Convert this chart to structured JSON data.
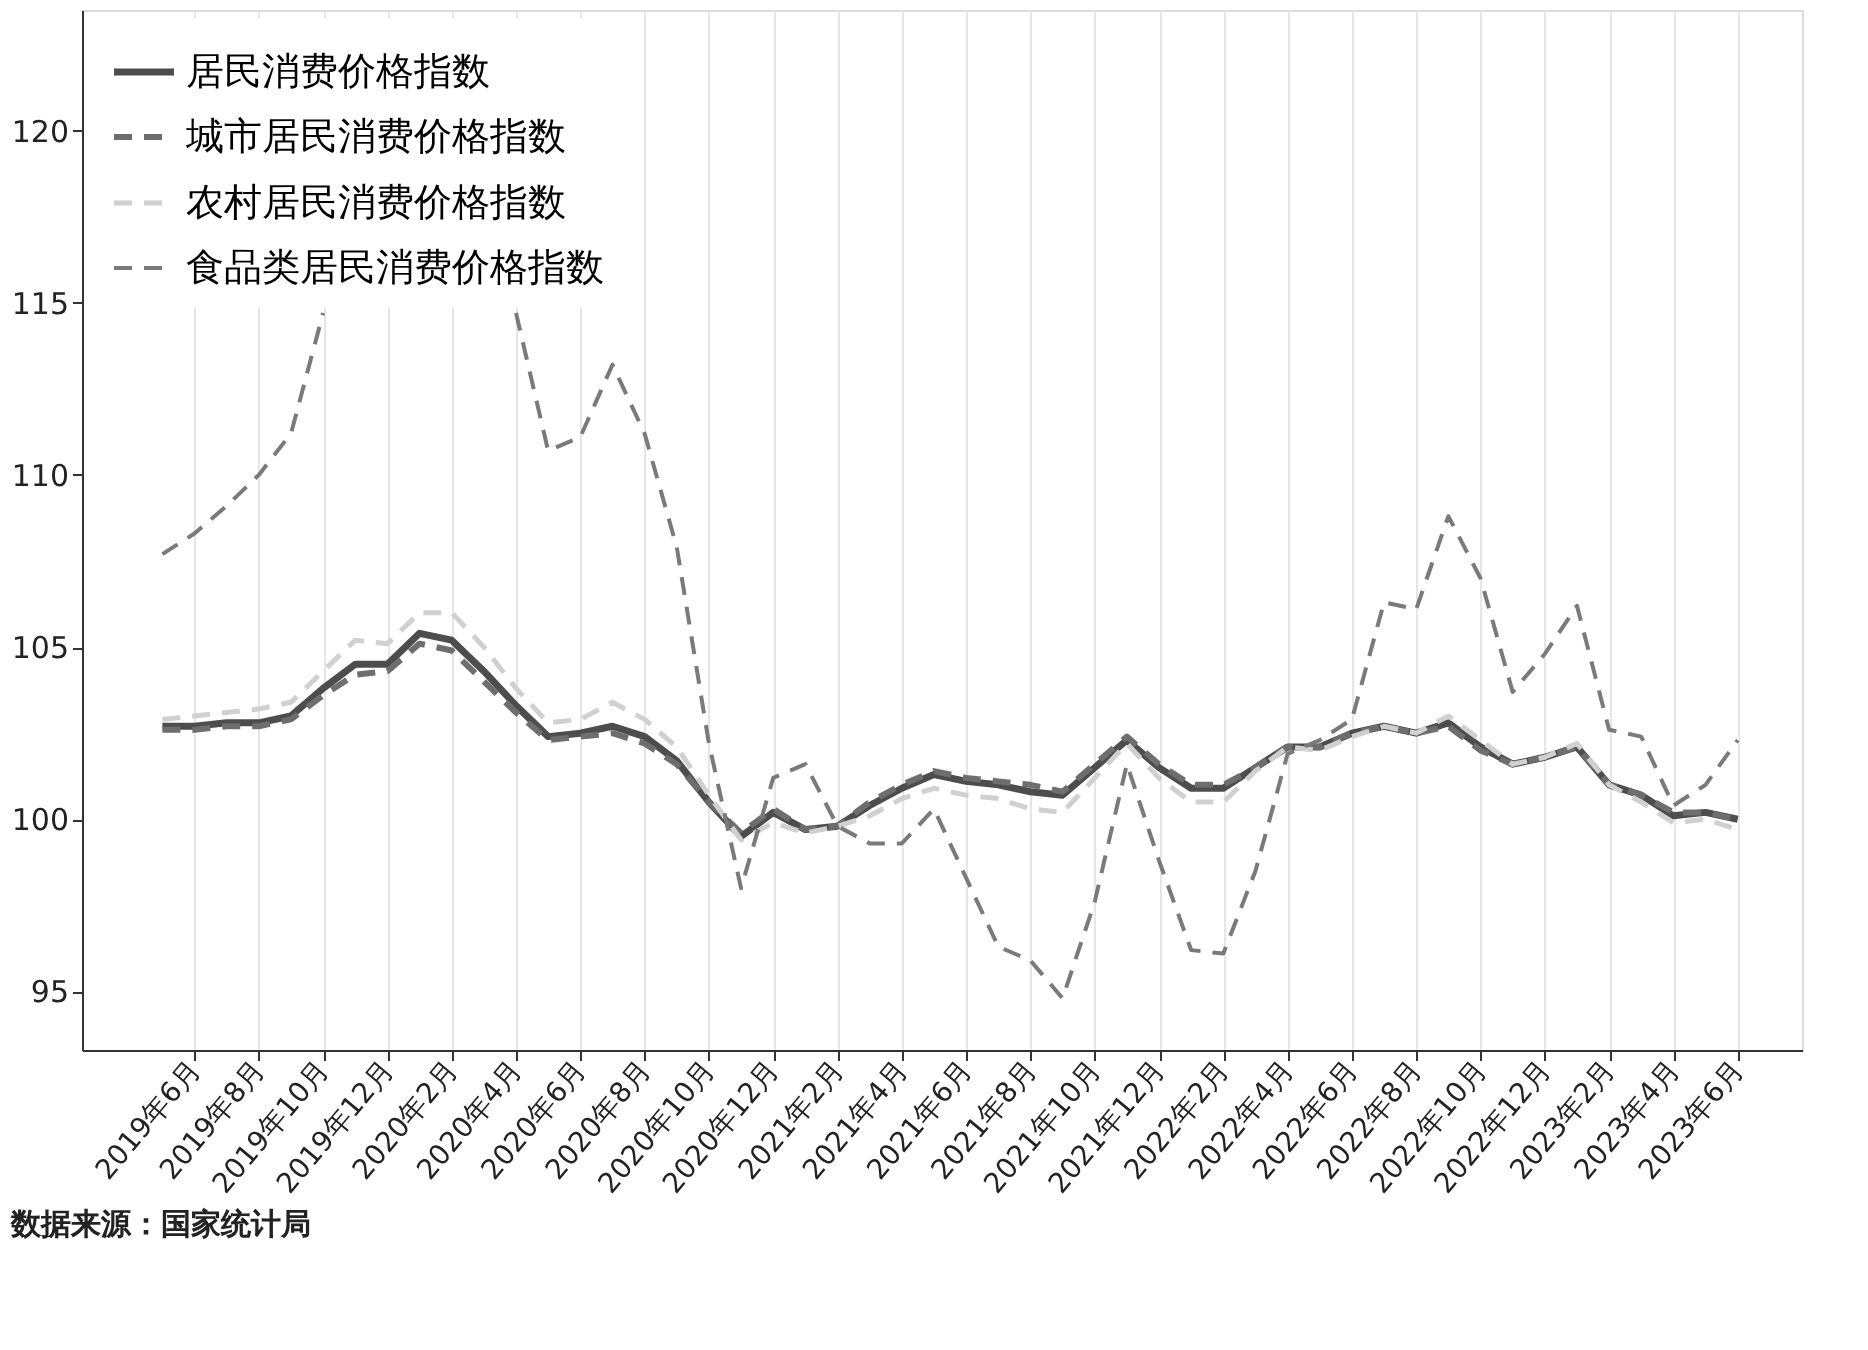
{
  "chart_data": {
    "type": "line",
    "categories": [
      null,
      "2019年6月",
      null,
      "2019年8月",
      null,
      "2019年10月",
      null,
      "2019年12月",
      null,
      "2020年2月",
      null,
      "2020年4月",
      null,
      "2020年6月",
      null,
      "2020年8月",
      null,
      "2020年10月",
      null,
      "2020年12月",
      null,
      "2021年2月",
      null,
      "2021年4月",
      null,
      "2021年6月",
      null,
      "2021年8月",
      null,
      "2021年10月",
      null,
      "2021年12月",
      null,
      "2022年2月",
      null,
      "2022年4月",
      null,
      "2022年6月",
      null,
      "2022年8月",
      null,
      "2022年10月",
      null,
      "2022年12月",
      null,
      "2023年2月",
      null,
      "2023年4月",
      null,
      "2023年6月"
    ],
    "series": [
      {
        "name": "居民消费价格指数",
        "color": "#4d4d4d",
        "line_style": "solid",
        "values": [
          102.7,
          102.7,
          102.8,
          102.8,
          103.0,
          103.8,
          104.5,
          104.5,
          105.4,
          105.2,
          104.3,
          103.3,
          102.4,
          102.5,
          102.7,
          102.4,
          101.7,
          100.5,
          99.5,
          100.2,
          99.7,
          99.8,
          100.4,
          100.9,
          101.3,
          101.1,
          101.0,
          100.8,
          100.7,
          101.5,
          102.3,
          101.5,
          100.9,
          100.9,
          101.5,
          102.1,
          102.1,
          102.5,
          102.7,
          102.5,
          102.8,
          102.1,
          101.6,
          101.8,
          102.1,
          101.0,
          100.7,
          100.1,
          100.2,
          100.0
        ]
      },
      {
        "name": "城市居民消费价格指数",
        "color": "#6e6e6e",
        "line_style": "dashed",
        "values": [
          102.6,
          102.6,
          102.7,
          102.7,
          102.9,
          103.6,
          104.2,
          104.3,
          105.1,
          104.9,
          104.0,
          103.1,
          102.3,
          102.4,
          102.5,
          102.2,
          101.6,
          100.5,
          99.6,
          100.3,
          99.7,
          99.8,
          100.5,
          101.0,
          101.4,
          101.2,
          101.1,
          101.0,
          100.8,
          101.6,
          102.4,
          101.6,
          101.0,
          101.0,
          101.5,
          102.1,
          102.1,
          102.5,
          102.7,
          102.5,
          102.7,
          102.0,
          101.6,
          101.8,
          102.1,
          101.0,
          100.7,
          100.2,
          100.2,
          100.0
        ]
      },
      {
        "name": "农村居民消费价格指数",
        "color": "#d0d0d0",
        "line_style": "dashed",
        "values": [
          102.9,
          103.0,
          103.1,
          103.2,
          103.4,
          104.3,
          105.2,
          105.1,
          106.0,
          106.0,
          105.0,
          103.8,
          102.8,
          102.9,
          103.4,
          102.9,
          102.1,
          100.7,
          99.4,
          99.9,
          99.6,
          99.8,
          100.1,
          100.6,
          100.9,
          100.7,
          100.6,
          100.3,
          100.2,
          101.2,
          102.2,
          101.2,
          100.5,
          100.5,
          101.4,
          102.1,
          102.0,
          102.4,
          102.7,
          102.5,
          103.0,
          102.3,
          101.6,
          101.8,
          102.2,
          101.0,
          100.5,
          99.9,
          100.0,
          99.7
        ]
      },
      {
        "name": "食品类居民消费价格指数",
        "color": "#7a7a7a",
        "line_style": "dashed",
        "values": [
          107.7,
          108.3,
          109.1,
          110.0,
          111.2,
          114.7,
          null,
          null,
          null,
          null,
          null,
          114.7,
          110.7,
          111.1,
          113.2,
          111.2,
          107.9,
          102.2,
          98.0,
          101.2,
          101.6,
          99.8,
          99.3,
          99.3,
          100.3,
          98.3,
          96.3,
          95.9,
          94.8,
          97.6,
          101.6,
          98.8,
          96.2,
          96.1,
          98.5,
          101.9,
          102.3,
          102.9,
          106.3,
          106.1,
          108.8,
          107.0,
          103.7,
          104.8,
          106.2,
          102.6,
          102.4,
          100.4,
          101.0,
          102.3
        ]
      }
    ],
    "ylim": [
      93.3,
      123.5
    ],
    "yticks": [
      95,
      100,
      105,
      110,
      115,
      120
    ],
    "grid": "x",
    "legend": "top left",
    "annotations": [
      "数据来源：国家统计局"
    ]
  }
}
